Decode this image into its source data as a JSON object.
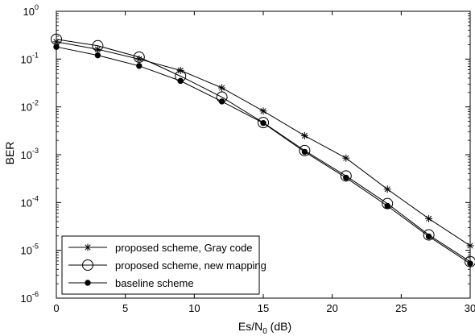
{
  "chart_data": {
    "type": "line",
    "xlabel": "Es/N",
    "xlabel_sub": "0",
    "xlabel_suffix": " (dB)",
    "ylabel": "BER",
    "xlim": [
      0,
      30
    ],
    "ylim": [
      1e-06,
      1
    ],
    "y_scale": "log",
    "grid": false,
    "legend_position": "bottom-left",
    "x_ticks": [
      0,
      5,
      10,
      15,
      20,
      25,
      30
    ],
    "y_tick_exponents": [
      0,
      -1,
      -2,
      -3,
      -4,
      -5,
      -6
    ],
    "y_tick_base": "10",
    "series": [
      {
        "name": "proposed scheme, Gray code",
        "marker": "asterisk",
        "color": "#000000",
        "x": [
          0,
          3,
          6,
          9,
          12,
          15,
          18,
          21,
          24,
          27,
          30
        ],
        "y": [
          0.23,
          0.16,
          0.1,
          0.058,
          0.025,
          0.0082,
          0.0025,
          0.00085,
          0.00019,
          4.6e-05,
          1.25e-05
        ]
      },
      {
        "name": "proposed scheme, new mapping",
        "marker": "open-circle",
        "color": "#000000",
        "x": [
          0,
          3,
          6,
          9,
          12,
          15,
          18,
          21,
          24,
          27,
          30
        ],
        "y": [
          0.26,
          0.19,
          0.11,
          0.044,
          0.016,
          0.0047,
          0.00122,
          0.00036,
          9.5e-05,
          2.1e-05,
          5.8e-06
        ]
      },
      {
        "name": "baseline scheme",
        "marker": "filled-dot",
        "color": "#000000",
        "x": [
          0,
          3,
          6,
          9,
          12,
          15,
          18,
          21,
          24,
          27,
          30
        ],
        "y": [
          0.18,
          0.12,
          0.072,
          0.035,
          0.013,
          0.0046,
          0.00115,
          0.00033,
          8.5e-05,
          1.95e-05,
          5.3e-06
        ]
      }
    ]
  }
}
